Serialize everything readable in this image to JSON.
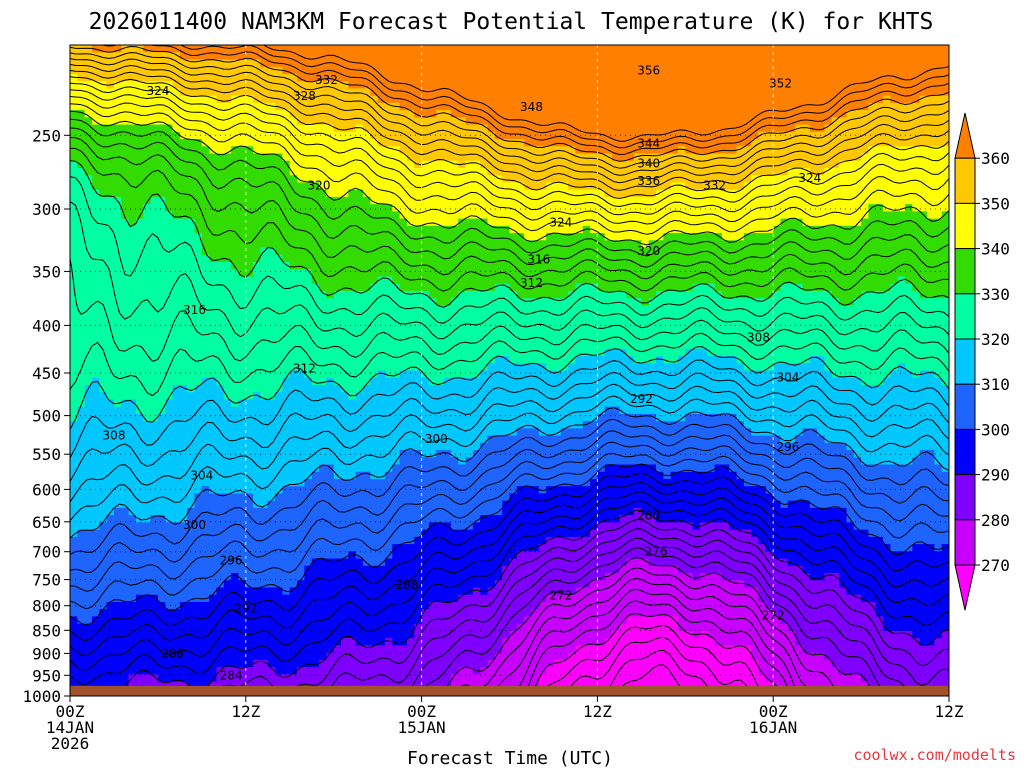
{
  "chart_data": {
    "type": "contour",
    "title": "2026011400 NAM3KM Forecast Potential Temperature (K) for KHTS",
    "xlabel": "Forecast Time (UTC)",
    "ylabel": "",
    "credit": "coolwx.com/modelts",
    "x_ticks": [
      {
        "hour": 0,
        "lines": [
          "00Z",
          "14JAN",
          "2026"
        ]
      },
      {
        "hour": 12,
        "lines": [
          "12Z"
        ]
      },
      {
        "hour": 24,
        "lines": [
          "00Z",
          "15JAN"
        ]
      },
      {
        "hour": 36,
        "lines": [
          "12Z"
        ]
      },
      {
        "hour": 48,
        "lines": [
          "00Z",
          "16JAN"
        ]
      },
      {
        "hour": 60,
        "lines": [
          "12Z"
        ]
      }
    ],
    "xlim": [
      0,
      60
    ],
    "y_ticks": [
      250,
      300,
      350,
      400,
      450,
      500,
      550,
      600,
      650,
      700,
      750,
      800,
      850,
      900,
      950,
      1000
    ],
    "ylim_hPa": [
      200,
      1000
    ],
    "y_scale": "log-pressure",
    "colorbar": {
      "labels": [
        "360",
        "350",
        "340",
        "330",
        "320",
        "310",
        "300",
        "290",
        "280",
        "270"
      ],
      "levels": [
        270,
        280,
        290,
        300,
        310,
        320,
        330,
        340,
        350,
        360
      ],
      "colors": [
        "#ff00ff",
        "#c800ff",
        "#8000ff",
        "#0000ff",
        "#1e64ff",
        "#00c8ff",
        "#00ffa0",
        "#32dc00",
        "#ffff00",
        "#ffc800",
        "#ff8000"
      ],
      "extend": "both"
    },
    "contour_interval_K": 2,
    "contour_labels": [
      {
        "text": "356",
        "hour": 39.5,
        "hPa": 213
      },
      {
        "text": "352",
        "hour": 48.5,
        "hPa": 220
      },
      {
        "text": "348",
        "hour": 31.5,
        "hPa": 233
      },
      {
        "text": "344",
        "hour": 39.5,
        "hPa": 255
      },
      {
        "text": "340",
        "hour": 39.5,
        "hPa": 268
      },
      {
        "text": "336",
        "hour": 39.5,
        "hPa": 280
      },
      {
        "text": "332",
        "hour": 17.5,
        "hPa": 218
      },
      {
        "text": "332",
        "hour": 44.0,
        "hPa": 283
      },
      {
        "text": "328",
        "hour": 16.0,
        "hPa": 227
      },
      {
        "text": "324",
        "hour": 6.0,
        "hPa": 224
      },
      {
        "text": "324",
        "hour": 33.5,
        "hPa": 310
      },
      {
        "text": "324",
        "hour": 50.5,
        "hPa": 278
      },
      {
        "text": "320",
        "hour": 17.0,
        "hPa": 283
      },
      {
        "text": "320",
        "hour": 39.5,
        "hPa": 333
      },
      {
        "text": "316",
        "hour": 32.0,
        "hPa": 340
      },
      {
        "text": "316",
        "hour": 8.5,
        "hPa": 385
      },
      {
        "text": "312",
        "hour": 31.5,
        "hPa": 360
      },
      {
        "text": "312",
        "hour": 16.0,
        "hPa": 445
      },
      {
        "text": "308",
        "hour": 47.0,
        "hPa": 412
      },
      {
        "text": "308",
        "hour": 3.0,
        "hPa": 525
      },
      {
        "text": "304",
        "hour": 49.0,
        "hPa": 455
      },
      {
        "text": "304",
        "hour": 9.0,
        "hPa": 580
      },
      {
        "text": "300",
        "hour": 25.0,
        "hPa": 530
      },
      {
        "text": "300",
        "hour": 8.5,
        "hPa": 655
      },
      {
        "text": "296",
        "hour": 49.0,
        "hPa": 540
      },
      {
        "text": "296",
        "hour": 11.0,
        "hPa": 715
      },
      {
        "text": "292",
        "hour": 39.0,
        "hPa": 480
      },
      {
        "text": "292",
        "hour": 12.0,
        "hPa": 805
      },
      {
        "text": "288",
        "hour": 23.0,
        "hPa": 760
      },
      {
        "text": "288",
        "hour": 7.0,
        "hPa": 900
      },
      {
        "text": "284",
        "hour": 11.0,
        "hPa": 950
      },
      {
        "text": "280",
        "hour": 39.5,
        "hPa": 640
      },
      {
        "text": "276",
        "hour": 40.0,
        "hPa": 700
      },
      {
        "text": "272",
        "hour": 33.5,
        "hPa": 780
      },
      {
        "text": "272",
        "hour": 48.0,
        "hPa": 820
      }
    ],
    "ground_color": "#a0522d",
    "ground_hPa": 975
  }
}
